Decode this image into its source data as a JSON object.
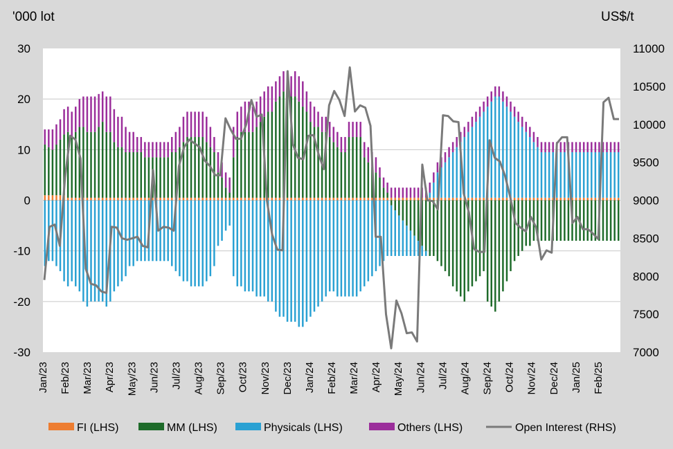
{
  "chart_data": {
    "type": "bar",
    "stacked": true,
    "left_unit": "'000 lot",
    "right_unit": "US$/t",
    "left_axis": {
      "min": -30,
      "max": 30,
      "ticks": [
        -30,
        -20,
        -10,
        0,
        10,
        20,
        30
      ]
    },
    "right_axis": {
      "min": 7000,
      "max": 11000,
      "ticks": [
        7000,
        7500,
        8000,
        8500,
        9000,
        9500,
        10000,
        10500,
        11000
      ]
    },
    "x_labels": [
      "Jan/23",
      "Feb/23",
      "Mar/23",
      "Apr/23",
      "May/23",
      "Jun/23",
      "Jul/23",
      "Aug/23",
      "Sep/23",
      "Oct/23",
      "Nov/23",
      "Dec/23",
      "Jan/24",
      "Feb/24",
      "Mar/24",
      "Apr/24",
      "May/24",
      "Jun/24",
      "Jul/24",
      "Aug/24",
      "Sep/24",
      "Oct/24",
      "Nov/24",
      "Dec/24",
      "Jan/25",
      "Feb/25"
    ],
    "grid": true,
    "legend_position": "bottom",
    "colors": {
      "FI": "#ed7d31",
      "MM": "#1e6b2a",
      "Physicals": "#2aa1d3",
      "Others": "#9b2e9b",
      "OI": "#7a7a7a",
      "plot_bg": "#ffffff",
      "page_bg": "#d9d9d9",
      "grid": "#c8c8c8"
    },
    "series": [
      {
        "name": "FI (LHS)",
        "key": "FI",
        "kind": "bar",
        "values": [
          1,
          1,
          1,
          1,
          1,
          1,
          0.5,
          0.5,
          0.5,
          0.5,
          0.5,
          0.5,
          0.5,
          0.5,
          0.5,
          0.5,
          0.5,
          0.5,
          0.5,
          0.5,
          0.5,
          0.5,
          0.5,
          0.5,
          0.5,
          0.5,
          0.5,
          0.5,
          0.5,
          0.5,
          0.5,
          0.5,
          0.5,
          0.5,
          0.5,
          0.5,
          0.5,
          0.5,
          0.5,
          0.5,
          0.5,
          0.5,
          0.5,
          0.5,
          0.5,
          0.5,
          0.5,
          0.5,
          0.5,
          0.5,
          0.5,
          0.5,
          0.5,
          0.5,
          0.5,
          0.5,
          0.5,
          0.5,
          0.5,
          0.5,
          0.5,
          0.5,
          0.5,
          0.5,
          0.5,
          0.5,
          0.5,
          0.5,
          0.5,
          0.5,
          0.5,
          0.5,
          0.5,
          0.5,
          0.5,
          0.5,
          0.5,
          0.5,
          0.5,
          0.5,
          0.5,
          0.5,
          0.5,
          0.5,
          0.5,
          0.5,
          0.5,
          0.5,
          0.5,
          0.5,
          0.5,
          0.5,
          0.5,
          0.5,
          0.5,
          0.5,
          0.5,
          0.5,
          0.5,
          0.5,
          0.5,
          0.5,
          0.5,
          0.5,
          0.5,
          0.5,
          0.5,
          0.5,
          0.5,
          0.5,
          0.5,
          0.5,
          0.5,
          0.5,
          0.5,
          0.5,
          0.5,
          0.5,
          0.5,
          0.5,
          0.5,
          0.5,
          0.5,
          0.5,
          0.5,
          0.5,
          0.5,
          0.5,
          0.5,
          0.5,
          0.5,
          0.5,
          0.5,
          0.5,
          0.5,
          0.5,
          0.5,
          0.5,
          0.5,
          0.5,
          0.5,
          0.5,
          0.5,
          0.5,
          0.5,
          0.5,
          0.5,
          0.5,
          0.5,
          0.5
        ]
      },
      {
        "name": "MM (LHS)",
        "key": "MM",
        "kind": "bar",
        "values": [
          10,
          9.5,
          9,
          10,
          11,
          12,
          13,
          12,
          13,
          14,
          14,
          13,
          13,
          13,
          14,
          15,
          13,
          13,
          11,
          10,
          10,
          9,
          9,
          9,
          9,
          9,
          8,
          8,
          8,
          8,
          8,
          8,
          8,
          9,
          9,
          10,
          11,
          12,
          12,
          12,
          12,
          12,
          11,
          10,
          9,
          5,
          4,
          2,
          1,
          8,
          12,
          13,
          13,
          13,
          13,
          14,
          15,
          16,
          17,
          17,
          19,
          20,
          21,
          21,
          20,
          20,
          19,
          18,
          17,
          15,
          14,
          14,
          13,
          13,
          12,
          11,
          10,
          9,
          9,
          12,
          12,
          12,
          12,
          8,
          7,
          6,
          5,
          4,
          2,
          1,
          -1,
          -2,
          -3,
          -4,
          -5,
          -6,
          -7,
          -8,
          -9,
          -10,
          -11,
          -11,
          -12,
          -13,
          -14,
          -15,
          -17,
          -18,
          -19,
          -20,
          -18,
          -17,
          -16,
          -15,
          -14,
          -20,
          -21,
          -22,
          -20,
          -18,
          -16,
          -14,
          -12,
          -11,
          -10,
          -9,
          -9,
          -8,
          -8,
          -8,
          -8,
          -8,
          -8,
          -8,
          -8,
          -8,
          -8,
          -8,
          -8,
          -8,
          -8,
          -8,
          -8,
          -8,
          -8,
          -8,
          -8,
          -8,
          -8,
          -8
        ]
      },
      {
        "name": "Physicals (LHS)",
        "key": "Physicals",
        "kind": "bar",
        "values": [
          -13,
          -12,
          -12,
          -13,
          -14,
          -16,
          -17,
          -16,
          -17,
          -18,
          -20,
          -21,
          -20,
          -20,
          -20,
          -20,
          -21,
          -20,
          -18,
          -17,
          -16,
          -15,
          -13,
          -13,
          -12,
          -12,
          -12,
          -12,
          -12,
          -12,
          -12,
          -12,
          -12,
          -13,
          -14,
          -15,
          -16,
          -16,
          -17,
          -17,
          -17,
          -17,
          -16,
          -15,
          -13,
          -9,
          -8,
          -6,
          -5,
          -15,
          -17,
          -17,
          -18,
          -18,
          -18,
          -19,
          -19,
          -19,
          -20,
          -20,
          -22,
          -23,
          -23,
          -24,
          -24,
          -24,
          -25,
          -25,
          -24,
          -23,
          -22,
          -21,
          -20,
          -19,
          -18,
          -18,
          -19,
          -19,
          -19,
          -19,
          -19,
          -19,
          -18,
          -17,
          -16,
          -15,
          -14,
          -13,
          -12,
          -11,
          -10,
          -9,
          -8,
          -7,
          -6,
          -5,
          -4,
          -3,
          -2,
          -1,
          1,
          3,
          5,
          6,
          7,
          8,
          9,
          10,
          11,
          12,
          13,
          14,
          15,
          16,
          17,
          18,
          19,
          20,
          20,
          19,
          18,
          17,
          16,
          15,
          14,
          13,
          12,
          11,
          10,
          9,
          9,
          9,
          9,
          9,
          9,
          9,
          9,
          9,
          9,
          9,
          9,
          9,
          9,
          9,
          9,
          9,
          9,
          9,
          9,
          9,
          9,
          9
        ]
      },
      {
        "name": "Others (LHS)",
        "key": "Others",
        "kind": "bar",
        "values": [
          3,
          3.5,
          4,
          4,
          4,
          5,
          5,
          5,
          5,
          5.5,
          6,
          7,
          7,
          7,
          6.5,
          6,
          7,
          7,
          6.5,
          6,
          6,
          5,
          4,
          4,
          3,
          3,
          3,
          3,
          3,
          3,
          3,
          3,
          3,
          3,
          4,
          4,
          5,
          5,
          5,
          5,
          5,
          5,
          5,
          4,
          3,
          4,
          3,
          3,
          3,
          6,
          5,
          5,
          6,
          6,
          5,
          5,
          5,
          5,
          5,
          5,
          4,
          4,
          4,
          4,
          4,
          5,
          5,
          5,
          4,
          4,
          4,
          3,
          3,
          3,
          3,
          3,
          3,
          3,
          3,
          3,
          3,
          3,
          3,
          3,
          3,
          3,
          3,
          2,
          2,
          2,
          2,
          2,
          2,
          2,
          2,
          2,
          2,
          2,
          2,
          2,
          2,
          2,
          2,
          2,
          2,
          2,
          2,
          2,
          2,
          2,
          2,
          2,
          2,
          2,
          2,
          2,
          2,
          2,
          2,
          2,
          2,
          2,
          2,
          2,
          2,
          2,
          2,
          2,
          2,
          2,
          2,
          2,
          2,
          2,
          2,
          2,
          2,
          2,
          2,
          2,
          2,
          2,
          2,
          2,
          2,
          2,
          2,
          2,
          2,
          2
        ]
      },
      {
        "name": "Open Interest (RHS)",
        "key": "OI",
        "kind": "line",
        "values": [
          7950,
          8650,
          8680,
          8400,
          9300,
          9850,
          9800,
          9550,
          8100,
          7900,
          7880,
          7800,
          7780,
          8650,
          8640,
          8500,
          8480,
          8500,
          8520,
          8400,
          8380,
          9400,
          8600,
          8650,
          8640,
          8600,
          9450,
          9700,
          9800,
          9750,
          9700,
          9520,
          9450,
          9330,
          9330,
          10080,
          9930,
          9810,
          9810,
          10000,
          10320,
          10100,
          10130,
          9000,
          8550,
          8350,
          8340,
          10700,
          9740,
          9560,
          9540,
          9850,
          9860,
          9600,
          9410,
          10250,
          10440,
          10320,
          10110,
          10750,
          10170,
          10250,
          10220,
          9980,
          8520,
          8520,
          7500,
          7050,
          7680,
          7510,
          7250,
          7260,
          7140,
          9470,
          9000,
          8990,
          8880,
          10120,
          10110,
          10040,
          10030,
          9090,
          8840,
          8360,
          8320,
          8320,
          9790,
          9560,
          9510,
          9320,
          9040,
          8700,
          8640,
          8590,
          8780,
          8640,
          8220,
          8340,
          8310,
          9750,
          9830,
          9830,
          8700,
          8780,
          8620,
          8620,
          8560,
          8490,
          10290,
          10350,
          10070,
          10070
        ]
      }
    ]
  }
}
